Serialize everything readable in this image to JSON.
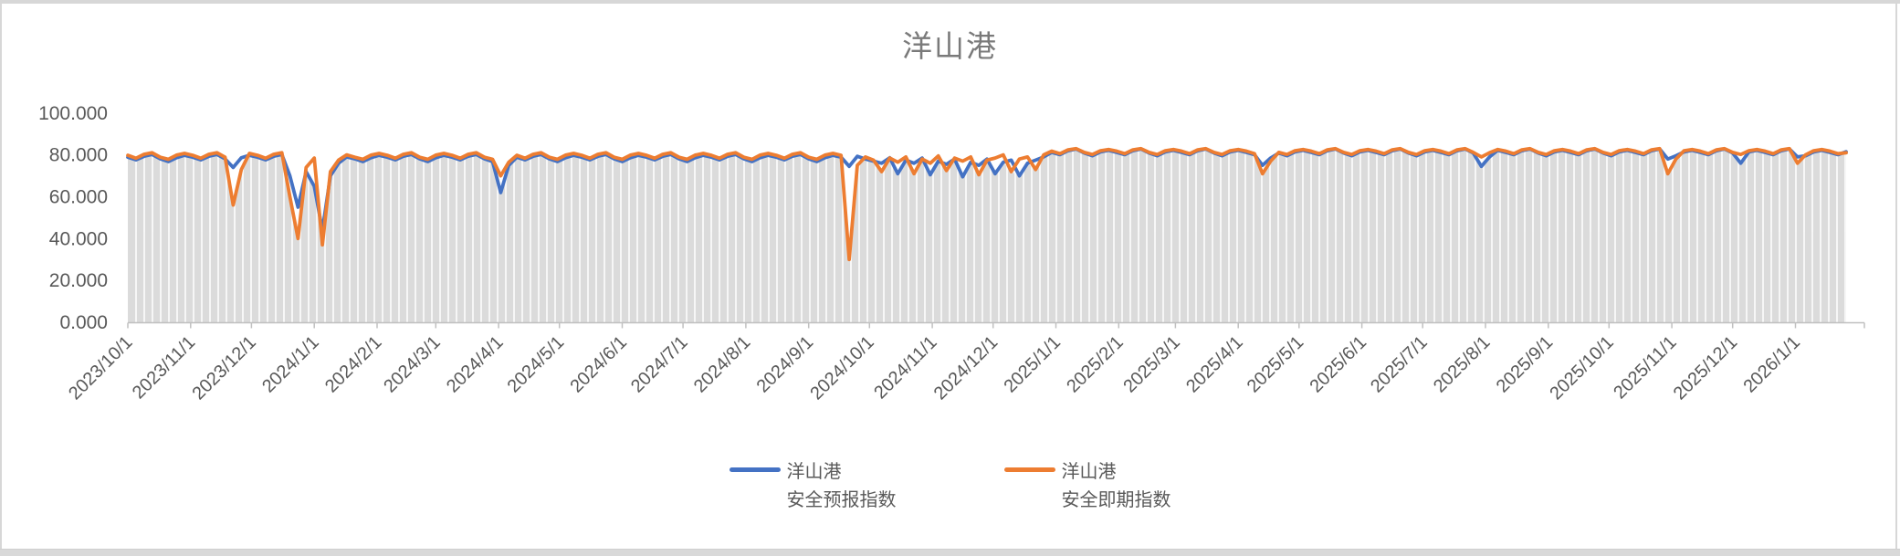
{
  "chart_data": {
    "type": "line",
    "title": "洋山港",
    "xlabel": "",
    "ylabel": "",
    "legend_position": "bottom",
    "grid": "vertical-stripes",
    "colors": {
      "plot_fill": "#dbdbdb",
      "stripe": "#ffffff",
      "axis": "#c0c0c0",
      "label_text": "#595959",
      "title_text": "#7a7a7a"
    },
    "y_axis": {
      "min": 0,
      "max": 100,
      "tick_values": [
        0,
        20,
        40,
        60,
        80,
        100
      ],
      "tick_labels": [
        "0.000",
        "20.000",
        "40.000",
        "60.000",
        "80.000",
        "100.000"
      ]
    },
    "x_axis": {
      "start_date": "2023/10/1",
      "end_day_offset": 848,
      "tick_labels": [
        "2023/10/1",
        "2023/11/1",
        "2023/12/1",
        "2024/1/1",
        "2024/2/1",
        "2024/3/1",
        "2024/4/1",
        "2024/5/1",
        "2024/6/1",
        "2024/7/1",
        "2024/8/1",
        "2024/9/1",
        "2024/10/1",
        "2024/11/1",
        "2024/12/1",
        "2025/1/1",
        "2025/2/1",
        "2025/3/1",
        "2025/4/1",
        "2025/5/1",
        "2025/6/1",
        "2025/7/1",
        "2025/8/1",
        "2025/9/1",
        "2025/10/1",
        "2025/11/1",
        "2025/12/1",
        "2026/1/1"
      ],
      "tick_day_offsets": [
        0,
        31,
        61,
        92,
        123,
        152,
        183,
        213,
        244,
        274,
        305,
        336,
        366,
        397,
        427,
        458,
        489,
        517,
        548,
        578,
        609,
        639,
        670,
        701,
        731,
        762,
        792,
        823
      ]
    },
    "sample_step_days": 4,
    "series": [
      {
        "name": "洋山港\n安全预报指数",
        "color": "#4472C4",
        "values": [
          78.9,
          77.6,
          79.3,
          80.2,
          78.1,
          76.8,
          78.6,
          79.8,
          78.9,
          77.6,
          79.3,
          80.2,
          78.1,
          74.0,
          78.6,
          79.8,
          78.9,
          77.6,
          79.3,
          80.2,
          70.0,
          55.0,
          72.0,
          65.0,
          44.0,
          70.0,
          76.0,
          79.0,
          78.1,
          76.8,
          78.6,
          79.8,
          78.9,
          77.6,
          79.3,
          80.2,
          78.1,
          76.8,
          78.6,
          79.8,
          78.9,
          77.6,
          79.3,
          80.2,
          78.1,
          76.8,
          62.0,
          75.0,
          78.9,
          77.6,
          79.3,
          80.2,
          78.1,
          76.8,
          78.6,
          79.8,
          78.9,
          77.6,
          79.3,
          80.2,
          78.1,
          76.8,
          78.6,
          79.8,
          78.9,
          77.6,
          79.3,
          80.2,
          78.1,
          76.8,
          78.6,
          79.8,
          78.9,
          77.6,
          79.3,
          80.2,
          78.1,
          76.8,
          78.6,
          79.8,
          78.9,
          77.6,
          79.3,
          80.2,
          78.1,
          76.8,
          78.6,
          79.8,
          78.9,
          74.5,
          79.3,
          78.0,
          77.0,
          76.0,
          78.6,
          71.0,
          77.5,
          76.0,
          78.5,
          70.5,
          77.0,
          75.5,
          78.0,
          69.5,
          76.5,
          75.0,
          78.0,
          71.0,
          76.5,
          77.5,
          70.0,
          76.0,
          77.5,
          79.0,
          81.2,
          80.1,
          82.0,
          82.8,
          80.9,
          79.6,
          81.4,
          82.2,
          81.2,
          80.1,
          82.0,
          82.8,
          80.9,
          79.6,
          81.4,
          82.2,
          81.2,
          80.1,
          82.0,
          82.8,
          80.9,
          79.6,
          81.4,
          82.2,
          81.2,
          80.1,
          75.0,
          78.5,
          80.9,
          79.6,
          81.4,
          82.2,
          81.2,
          80.1,
          82.0,
          82.8,
          80.9,
          79.6,
          81.4,
          82.2,
          81.2,
          80.1,
          82.0,
          82.8,
          80.9,
          79.6,
          81.4,
          82.2,
          81.2,
          80.1,
          82.0,
          82.8,
          80.9,
          74.5,
          79.0,
          82.2,
          81.2,
          80.1,
          82.0,
          82.8,
          80.9,
          79.6,
          81.4,
          82.2,
          81.2,
          80.1,
          82.0,
          82.8,
          80.9,
          79.6,
          81.4,
          82.2,
          81.2,
          80.1,
          82.0,
          82.8,
          78.0,
          79.6,
          81.4,
          82.2,
          81.2,
          80.1,
          82.0,
          82.8,
          80.9,
          76.0,
          81.4,
          82.2,
          81.2,
          80.1,
          82.0,
          82.8,
          79.0,
          79.6,
          81.4,
          82.2,
          81.2,
          80.1,
          81.5
        ]
      },
      {
        "name": "洋山港\n安全即期指数",
        "color": "#ED7D31",
        "values": [
          79.8,
          78.4,
          80.3,
          81.0,
          78.9,
          77.9,
          79.9,
          80.7,
          79.8,
          78.4,
          80.3,
          81.0,
          78.9,
          56.0,
          73.0,
          80.7,
          79.8,
          78.4,
          80.3,
          81.0,
          60.0,
          40.0,
          74.0,
          78.5,
          37.0,
          72.0,
          77.5,
          80.0,
          78.9,
          77.9,
          79.9,
          80.7,
          79.8,
          78.4,
          80.3,
          81.0,
          78.9,
          77.9,
          79.9,
          80.7,
          79.8,
          78.4,
          80.3,
          81.0,
          78.9,
          77.9,
          70.0,
          76.5,
          79.8,
          78.4,
          80.3,
          81.0,
          78.9,
          77.9,
          79.9,
          80.7,
          79.8,
          78.4,
          80.3,
          81.0,
          78.9,
          77.9,
          79.9,
          80.7,
          79.8,
          78.4,
          80.3,
          81.0,
          78.9,
          77.9,
          79.9,
          80.7,
          79.8,
          78.4,
          80.3,
          81.0,
          78.9,
          77.9,
          79.9,
          80.7,
          79.8,
          78.4,
          80.3,
          81.0,
          78.9,
          77.9,
          79.9,
          80.7,
          79.8,
          30.0,
          75.0,
          79.0,
          77.5,
          72.0,
          78.5,
          76.5,
          79.0,
          71.0,
          78.0,
          76.0,
          79.5,
          72.5,
          78.5,
          77.0,
          79.0,
          70.5,
          77.5,
          78.5,
          80.0,
          72.0,
          78.0,
          79.0,
          73.0,
          80.0,
          81.8,
          80.6,
          82.4,
          83.0,
          81.2,
          80.2,
          82.0,
          82.6,
          81.8,
          80.6,
          82.4,
          83.0,
          81.2,
          80.2,
          82.0,
          82.6,
          81.8,
          80.6,
          82.4,
          83.0,
          81.2,
          80.2,
          82.0,
          82.6,
          81.8,
          80.6,
          71.0,
          77.0,
          81.2,
          80.2,
          82.0,
          82.6,
          81.8,
          80.6,
          82.4,
          83.0,
          81.2,
          80.2,
          82.0,
          82.6,
          81.8,
          80.6,
          82.4,
          83.0,
          81.2,
          80.2,
          82.0,
          82.6,
          81.8,
          80.6,
          82.4,
          83.0,
          81.2,
          79.0,
          81.0,
          82.6,
          81.8,
          80.6,
          82.4,
          83.0,
          81.2,
          80.2,
          82.0,
          82.6,
          81.8,
          80.6,
          82.4,
          83.0,
          81.2,
          80.2,
          82.0,
          82.6,
          81.8,
          80.6,
          82.4,
          83.0,
          71.0,
          78.0,
          82.0,
          82.6,
          81.8,
          80.6,
          82.4,
          83.0,
          81.2,
          80.2,
          82.0,
          82.6,
          81.8,
          80.6,
          82.4,
          83.0,
          76.0,
          80.0,
          82.0,
          82.6,
          81.8,
          80.6,
          81.0
        ]
      }
    ]
  }
}
